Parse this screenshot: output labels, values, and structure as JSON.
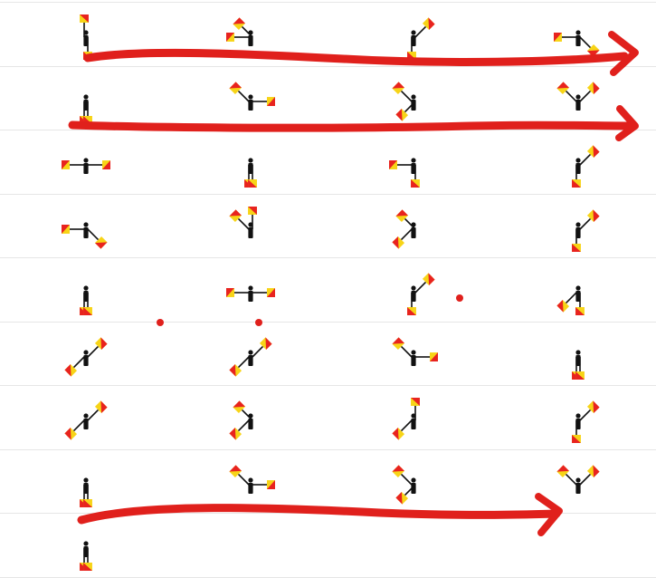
{
  "colors": {
    "background": "#ffffff",
    "row_divider": "#e6e6e6",
    "figure": "#111111",
    "flag_red": "#e8231f",
    "flag_yellow": "#f7d417",
    "annotation": "#e0201c"
  },
  "rows": [
    {
      "signals": [
        {
          "arms": [
            "N",
            "S"
          ]
        },
        {
          "arms": [
            "W",
            "NW"
          ]
        },
        {
          "arms": [
            "S",
            "NE"
          ]
        },
        {
          "arms": [
            "W",
            "SE"
          ]
        }
      ]
    },
    {
      "signals": [
        {
          "arms": [
            "S",
            "S"
          ]
        },
        {
          "arms": [
            "NW",
            "E"
          ]
        },
        {
          "arms": [
            "NW",
            "SW"
          ]
        },
        {
          "arms": [
            "NW",
            "NE"
          ]
        }
      ]
    },
    {
      "signals": [
        {
          "arms": [
            "W",
            "E"
          ]
        },
        {
          "arms": [
            "S",
            "S"
          ]
        },
        {
          "arms": [
            "W",
            "S"
          ]
        },
        {
          "arms": [
            "S",
            "NE"
          ]
        }
      ]
    },
    {
      "signals": [
        {
          "arms": [
            "W",
            "SE"
          ]
        },
        {
          "arms": [
            "NW",
            "N"
          ]
        },
        {
          "arms": [
            "SW",
            "NW"
          ]
        },
        {
          "arms": [
            "S",
            "NE"
          ]
        }
      ]
    },
    {
      "signals": [
        {
          "arms": [
            "S",
            "S"
          ]
        },
        {
          "arms": [
            "W",
            "E"
          ]
        },
        {
          "arms": [
            "S",
            "NE"
          ]
        },
        {
          "arms": [
            "SW",
            "S"
          ]
        }
      ]
    },
    {
      "signals": [
        {
          "arms": [
            "SW",
            "NE"
          ]
        },
        {
          "arms": [
            "SW",
            "NE"
          ]
        },
        {
          "arms": [
            "NW",
            "E"
          ]
        },
        {
          "arms": [
            "S",
            "S"
          ]
        }
      ]
    },
    {
      "signals": [
        {
          "arms": [
            "SW",
            "NE"
          ]
        },
        {
          "arms": [
            "SW",
            "NW"
          ]
        },
        {
          "arms": [
            "SW",
            "N"
          ]
        },
        {
          "arms": [
            "S",
            "NE"
          ]
        }
      ]
    },
    {
      "signals": [
        {
          "arms": [
            "S",
            "S"
          ]
        },
        {
          "arms": [
            "NW",
            "E"
          ]
        },
        {
          "arms": [
            "NW",
            "SW"
          ]
        },
        {
          "arms": [
            "NW",
            "NE"
          ]
        }
      ]
    },
    {
      "signals": [
        {
          "arms": [
            "S",
            "S"
          ]
        }
      ]
    }
  ],
  "annotations": {
    "arrows": [
      "row-1-arrow",
      "row-2-arrow",
      "row-8-arrow"
    ],
    "dot_count": 3
  }
}
